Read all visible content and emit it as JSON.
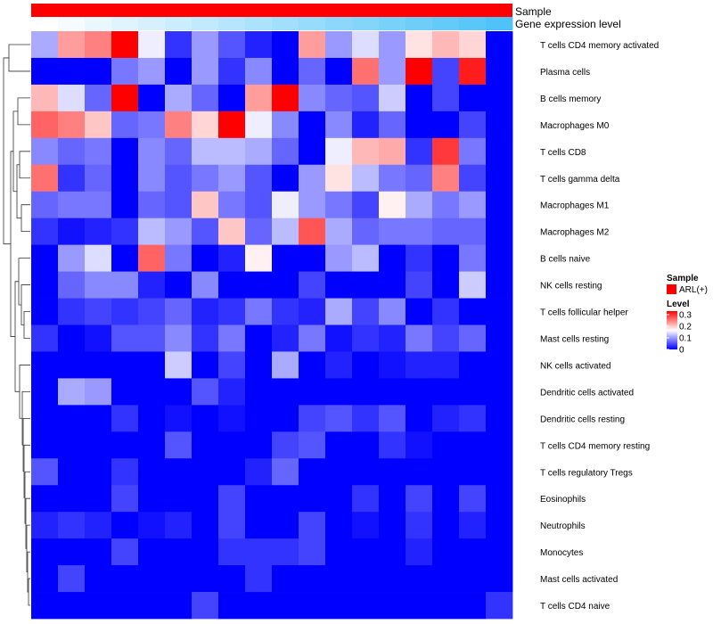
{
  "chart_data": {
    "type": "heatmap",
    "annotation_tracks": [
      "Sample",
      "Gene expression level"
    ],
    "sample_annotation_value": "ARL(+)",
    "row_labels": [
      "T cells CD4 memory activated",
      "Plasma cells",
      "B cells memory",
      "Macrophages M0",
      "T cells CD8",
      "T cells gamma delta",
      "Macrophages M1",
      "Macrophages M2",
      "B cells naive",
      "NK cells resting",
      "T cells follicular helper",
      "Mast cells resting",
      "NK cells activated",
      "Dendritic cells activated",
      "Dendritic cells resting",
      "T cells CD4 memory resting",
      "T cells regulatory  Tregs",
      "Eosinophils",
      "Neutrophils",
      "Monocytes",
      "Mast cells activated",
      "T cells CD4 naive"
    ],
    "n_columns": 18,
    "values": [
      [
        0.1,
        0.22,
        0.24,
        0.33,
        0.14,
        0.03,
        0.09,
        0.05,
        0.02,
        0.0,
        0.22,
        0.09,
        0.13,
        0.09,
        0.17,
        0.2,
        0.18,
        0.0
      ],
      [
        0.0,
        0.0,
        0.0,
        0.07,
        0.09,
        0.0,
        0.09,
        0.03,
        0.08,
        0.0,
        0.06,
        0.0,
        0.25,
        0.09,
        0.33,
        0.04,
        0.31,
        0.0
      ],
      [
        0.2,
        0.13,
        0.06,
        0.33,
        0.0,
        0.1,
        0.06,
        0.0,
        0.22,
        0.33,
        0.08,
        0.06,
        0.05,
        0.12,
        0.0,
        0.04,
        0.0,
        0.0
      ],
      [
        0.26,
        0.24,
        0.19,
        0.06,
        0.07,
        0.24,
        0.18,
        0.33,
        0.14,
        0.08,
        0.0,
        0.08,
        0.02,
        0.06,
        0.0,
        0.0,
        0.04,
        0.0
      ],
      [
        0.08,
        0.06,
        0.07,
        0.0,
        0.08,
        0.06,
        0.11,
        0.11,
        0.1,
        0.06,
        0.0,
        0.14,
        0.2,
        0.21,
        0.03,
        0.29,
        0.07,
        0.0
      ],
      [
        0.25,
        0.03,
        0.06,
        0.0,
        0.08,
        0.05,
        0.07,
        0.09,
        0.05,
        0.0,
        0.09,
        0.17,
        0.11,
        0.07,
        0.06,
        0.24,
        0.04,
        0.0
      ],
      [
        0.06,
        0.07,
        0.07,
        0.0,
        0.06,
        0.05,
        0.19,
        0.07,
        0.05,
        0.14,
        0.09,
        0.07,
        0.04,
        0.16,
        0.1,
        0.07,
        0.09,
        0.0
      ],
      [
        0.03,
        0.01,
        0.02,
        0.03,
        0.11,
        0.09,
        0.05,
        0.19,
        0.06,
        0.11,
        0.27,
        0.1,
        0.06,
        0.07,
        0.07,
        0.06,
        0.06,
        0.0
      ],
      [
        0.0,
        0.09,
        0.13,
        0.0,
        0.26,
        0.07,
        0.0,
        0.02,
        0.16,
        0.0,
        0.0,
        0.09,
        0.11,
        0.0,
        0.03,
        0.0,
        0.07,
        0.0
      ],
      [
        0.0,
        0.06,
        0.08,
        0.08,
        0.02,
        0.0,
        0.08,
        0.0,
        0.0,
        0.0,
        0.04,
        0.0,
        0.0,
        0.0,
        0.04,
        0.0,
        0.12,
        0.0
      ],
      [
        0.0,
        0.03,
        0.04,
        0.03,
        0.04,
        0.06,
        0.02,
        0.03,
        0.07,
        0.03,
        0.02,
        0.1,
        0.04,
        0.08,
        0.0,
        0.03,
        0.0,
        0.0
      ],
      [
        0.03,
        0.0,
        0.01,
        0.05,
        0.05,
        0.08,
        0.03,
        0.07,
        0.0,
        0.02,
        0.07,
        0.01,
        0.03,
        0.02,
        0.07,
        0.04,
        0.06,
        0.0
      ],
      [
        0.0,
        0.0,
        0.0,
        0.0,
        0.0,
        0.12,
        0.0,
        0.04,
        0.0,
        0.1,
        0.0,
        0.02,
        0.0,
        0.01,
        0.02,
        0.02,
        0.0,
        0.0
      ],
      [
        0.0,
        0.1,
        0.09,
        0.0,
        0.0,
        0.0,
        0.05,
        0.02,
        0.0,
        0.0,
        0.0,
        0.0,
        0.0,
        0.0,
        0.0,
        0.0,
        0.0,
        0.0
      ],
      [
        0.0,
        0.0,
        0.0,
        0.03,
        0.0,
        0.01,
        0.0,
        0.01,
        0.0,
        0.0,
        0.04,
        0.05,
        0.03,
        0.05,
        0.0,
        0.02,
        0.03,
        0.0
      ],
      [
        0.0,
        0.0,
        0.0,
        0.0,
        0.0,
        0.05,
        0.0,
        0.0,
        0.0,
        0.04,
        0.05,
        0.0,
        0.0,
        0.03,
        0.01,
        0.0,
        0.0,
        0.0
      ],
      [
        0.05,
        0.0,
        0.0,
        0.03,
        0.0,
        0.0,
        0.0,
        0.0,
        0.02,
        0.06,
        0.0,
        0.0,
        0.0,
        0.0,
        0.0,
        0.0,
        0.0,
        0.0
      ],
      [
        0.0,
        0.0,
        0.0,
        0.04,
        0.0,
        0.0,
        0.0,
        0.04,
        0.0,
        0.0,
        0.0,
        0.0,
        0.03,
        0.0,
        0.04,
        0.0,
        0.04,
        0.0
      ],
      [
        0.02,
        0.03,
        0.02,
        0.0,
        0.01,
        0.02,
        0.0,
        0.04,
        0.0,
        0.0,
        0.04,
        0.0,
        0.01,
        0.0,
        0.03,
        0.0,
        0.02,
        0.0
      ],
      [
        0.0,
        0.0,
        0.0,
        0.04,
        0.0,
        0.0,
        0.0,
        0.03,
        0.03,
        0.03,
        0.04,
        0.0,
        0.0,
        0.0,
        0.02,
        0.0,
        0.0,
        0.0
      ],
      [
        0.0,
        0.04,
        0.0,
        0.0,
        0.0,
        0.0,
        0.0,
        0.0,
        0.03,
        0.0,
        0.0,
        0.0,
        0.0,
        0.0,
        0.0,
        0.0,
        0.0,
        0.0
      ],
      [
        0.0,
        0.0,
        0.0,
        0.0,
        0.0,
        0.0,
        0.04,
        0.0,
        0.0,
        0.0,
        0.0,
        0.0,
        0.0,
        0.0,
        0.0,
        0.0,
        0.0,
        0.03
      ]
    ],
    "color_scale": {
      "min": 0,
      "mid": 0.15,
      "max": 0.33,
      "low_color": "#0000ff",
      "mid_color": "#ffffff",
      "high_color": "#ff0000"
    },
    "sample_color": "#ff0000",
    "gene_expression_gradient": [
      "#ffffff",
      "#4fc3f7"
    ],
    "legend": {
      "sample_title": "Sample",
      "sample_entry": "ARL(+)",
      "level_title": "Level",
      "level_ticks": [
        {
          "value": 0.3,
          "label": "0.3"
        },
        {
          "value": 0.2,
          "label": "0.2"
        },
        {
          "value": 0.1,
          "label": "0.1"
        },
        {
          "value": 0,
          "label": "0"
        }
      ],
      "position": "right"
    },
    "row_dendrogram": "left"
  }
}
